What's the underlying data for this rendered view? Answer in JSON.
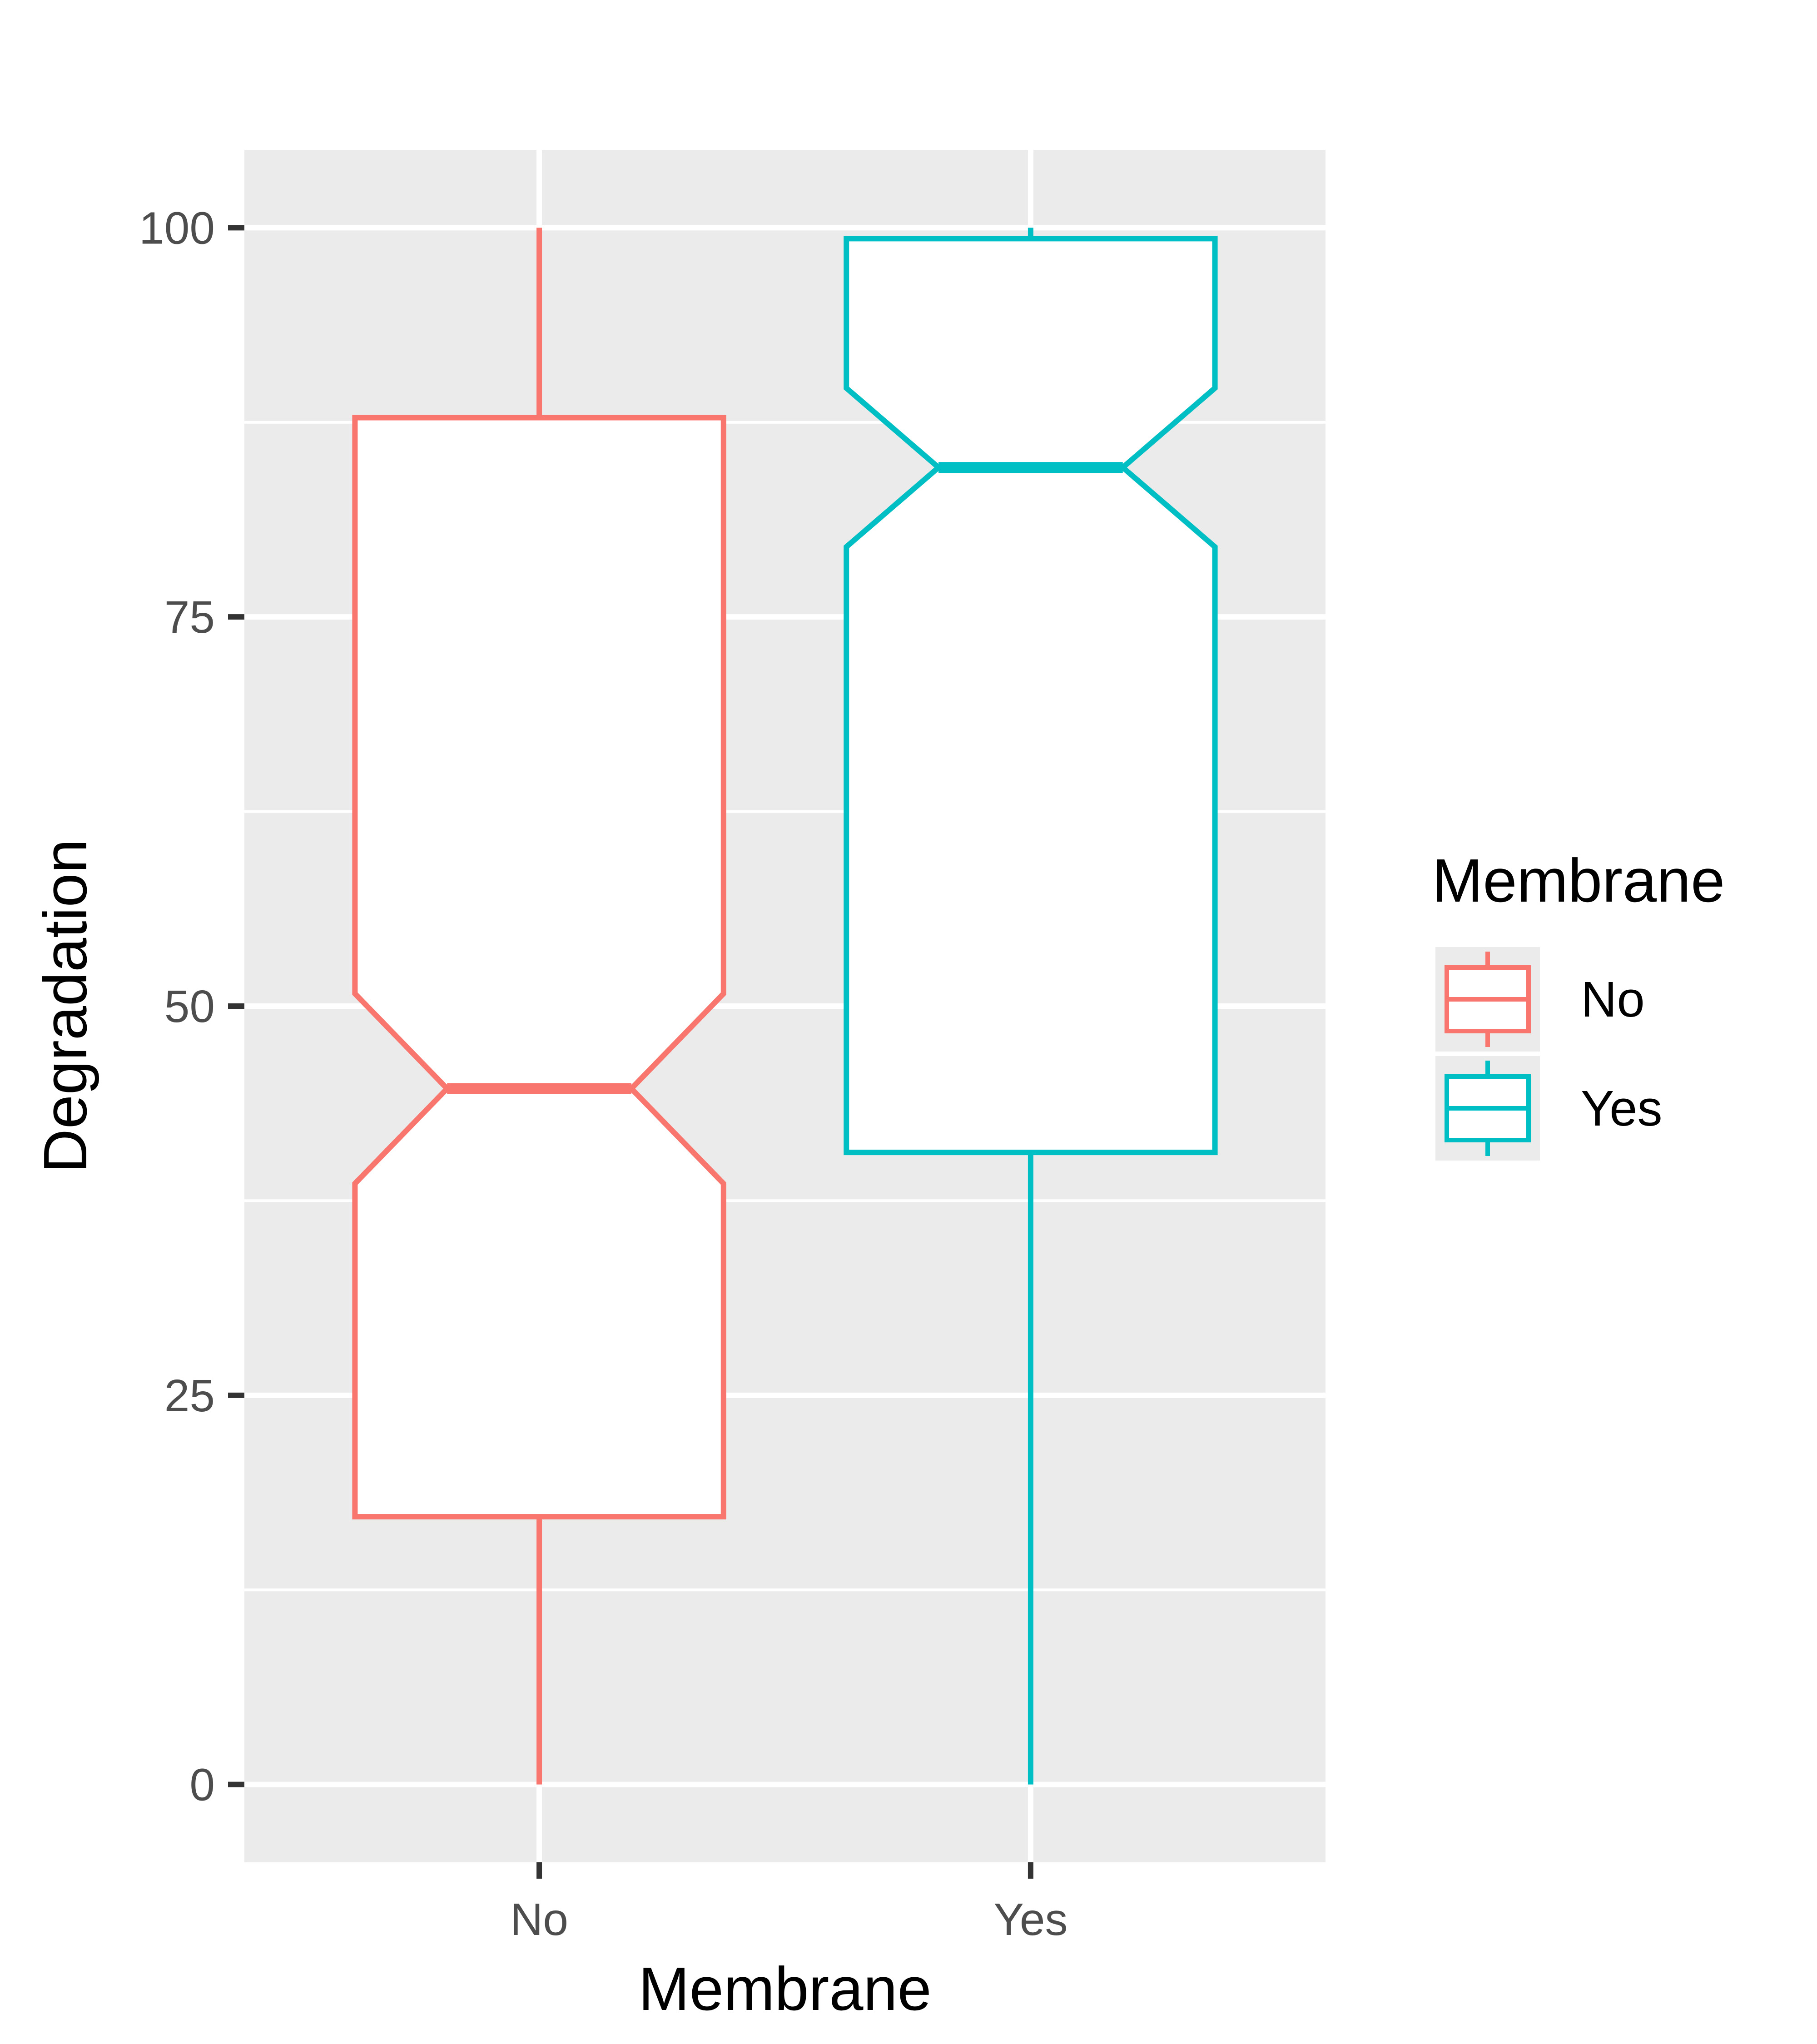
{
  "chart_data": {
    "type": "boxplot",
    "notched": true,
    "xlabel": "Membrane",
    "ylabel": "Degradation",
    "categories": [
      "No",
      "Yes"
    ],
    "ylim": [
      -5,
      105
    ],
    "yticks": [
      0,
      25,
      50,
      75,
      100
    ],
    "ytick_labels": [
      "0",
      "25",
      "50",
      "75",
      "100"
    ],
    "grid": true,
    "legend": {
      "title": "Membrane",
      "placement": "right",
      "entries": [
        "No",
        "Yes"
      ]
    },
    "series": [
      {
        "category": "No",
        "color": "#F8766D",
        "min": 0,
        "q1": 17.2,
        "median": 44.7,
        "q3": 87.8,
        "max": 100,
        "notch_low": 38.6,
        "notch_high": 50.8
      },
      {
        "category": "Yes",
        "color": "#00BFC4",
        "min": 0,
        "q1": 40.6,
        "median": 84.6,
        "q3": 99.3,
        "max": 100,
        "notch_low": 79.5,
        "notch_high": 89.7
      }
    ]
  },
  "colors": {
    "panel_background": "#EBEBEB",
    "grid": "#FFFFFF",
    "tick": "#333333"
  }
}
